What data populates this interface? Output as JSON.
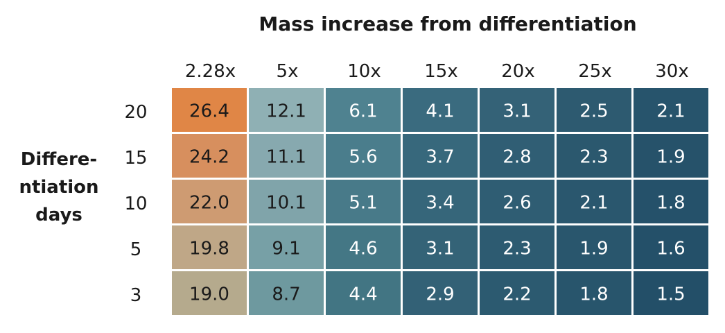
{
  "chart_data": {
    "type": "heatmap",
    "title": "Mass increase from differentiation",
    "ylabel": [
      "Differe-",
      "ntiation",
      "days"
    ],
    "x": [
      "2.28x",
      "5x",
      "10x",
      "15x",
      "20x",
      "25x",
      "30x"
    ],
    "y": [
      "20",
      "15",
      "10",
      "5",
      "3"
    ],
    "values": [
      [
        "26.4",
        "12.1",
        "6.1",
        "4.1",
        "3.1",
        "2.5",
        "2.1"
      ],
      [
        "24.2",
        "11.1",
        "5.6",
        "3.7",
        "2.8",
        "2.3",
        "1.9"
      ],
      [
        "22.0",
        "10.1",
        "5.1",
        "3.4",
        "2.6",
        "2.1",
        "1.8"
      ],
      [
        "19.8",
        "9.1",
        "4.6",
        "3.1",
        "2.3",
        "1.9",
        "1.6"
      ],
      [
        "19.0",
        "8.7",
        "4.4",
        "2.9",
        "2.2",
        "1.8",
        "1.5"
      ]
    ],
    "colors": [
      [
        "#E08646",
        "#8FB0B4",
        "#4F8290",
        "#3A6B7F",
        "#346277",
        "#2D5A70",
        "#27546C"
      ],
      [
        "#D78F5E",
        "#87A9AF",
        "#4A7D8C",
        "#37687C",
        "#305E74",
        "#2B586E",
        "#26526A"
      ],
      [
        "#CE9B72",
        "#80A4AA",
        "#487A89",
        "#36667A",
        "#2F5D73",
        "#2A576E",
        "#25516A"
      ],
      [
        "#BFA787",
        "#77A0A6",
        "#447785",
        "#346377",
        "#2D5B71",
        "#29566D",
        "#245069"
      ],
      [
        "#B5AA8D",
        "#6E999F",
        "#427583",
        "#336176",
        "#2C5A70",
        "#28556C",
        "#234F68"
      ]
    ],
    "text_colors": [
      [
        "#1a1a1a",
        "#1a1a1a",
        "#ffffff",
        "#ffffff",
        "#ffffff",
        "#ffffff",
        "#ffffff"
      ],
      [
        "#1a1a1a",
        "#1a1a1a",
        "#ffffff",
        "#ffffff",
        "#ffffff",
        "#ffffff",
        "#ffffff"
      ],
      [
        "#1a1a1a",
        "#1a1a1a",
        "#ffffff",
        "#ffffff",
        "#ffffff",
        "#ffffff",
        "#ffffff"
      ],
      [
        "#1a1a1a",
        "#1a1a1a",
        "#ffffff",
        "#ffffff",
        "#ffffff",
        "#ffffff",
        "#ffffff"
      ],
      [
        "#1a1a1a",
        "#1a1a1a",
        "#ffffff",
        "#ffffff",
        "#ffffff",
        "#ffffff",
        "#ffffff"
      ]
    ]
  }
}
